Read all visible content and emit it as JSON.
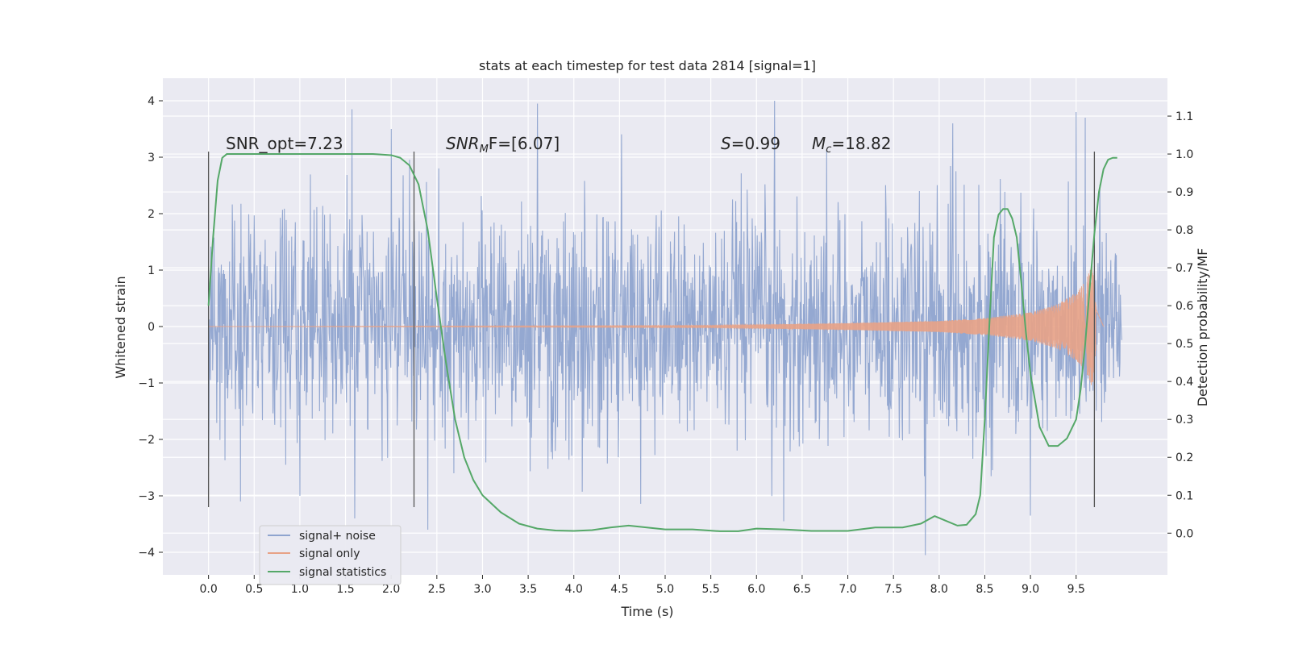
{
  "chart_data": {
    "type": "line",
    "title": "stats at each timestep for test data 2814 [signal=1]",
    "xlabel": "Time (s)",
    "ylabel": "Whitened strain",
    "y2label": "Detection probability/MF",
    "xlim": [
      -0.5,
      10.5
    ],
    "ylim": [
      -4.4,
      4.4
    ],
    "y2lim": [
      -0.11,
      1.2
    ],
    "x_ticks": [
      0.0,
      0.5,
      1.0,
      1.5,
      2.0,
      2.5,
      3.0,
      3.5,
      4.0,
      4.5,
      5.0,
      5.5,
      6.0,
      6.5,
      7.0,
      7.5,
      8.0,
      8.5,
      9.0,
      9.5
    ],
    "x_tick_labels": [
      "0.0",
      "0.5",
      "1.0",
      "1.5",
      "2.0",
      "2.5",
      "3.0",
      "3.5",
      "4.0",
      "4.5",
      "5.0",
      "5.5",
      "6.0",
      "6.5",
      "7.0",
      "7.5",
      "8.0",
      "8.5",
      "9.0",
      "9.5"
    ],
    "y_ticks": [
      -4,
      -3,
      -2,
      -1,
      0,
      1,
      2,
      3,
      4
    ],
    "y_tick_labels": [
      "−4",
      "−3",
      "−2",
      "−1",
      "0",
      "1",
      "2",
      "3",
      "4"
    ],
    "y2_ticks": [
      0.0,
      0.1,
      0.2,
      0.3,
      0.4,
      0.5,
      0.6,
      0.7,
      0.8,
      0.9,
      1.0,
      1.1
    ],
    "y2_tick_labels": [
      "0.0",
      "0.1",
      "0.2",
      "0.3",
      "0.4",
      "0.5",
      "0.6",
      "0.7",
      "0.8",
      "0.9",
      "1.0",
      "1.1"
    ],
    "grid": true,
    "legend_position": "lower-left",
    "annotations": {
      "snr_opt": "SNR_opt=7.23",
      "snr_mf_sym": "SNR",
      "snr_mf_sub": "M",
      "snr_mf_rest": "F=[6.07]",
      "s_sym": "S",
      "s_rest": "=0.99",
      "mc_sym": "M",
      "mc_sub": "c",
      "mc_rest": "=18.82"
    },
    "vertical_markers": {
      "x": [
        0.0,
        2.25,
        9.7
      ],
      "y_range": [
        -3.2,
        3.1
      ]
    },
    "series": [
      {
        "name": "signal+ noise",
        "axis": "left",
        "color": "#8fa4cf",
        "x_range": [
          0.0,
          10.0
        ],
        "n_samples": 2000,
        "typical_amplitude": 1.0,
        "peaks": [
          [
            1.57,
            3.85
          ],
          [
            2.0,
            3.5
          ],
          [
            3.6,
            3.95
          ],
          [
            6.2,
            4.0
          ],
          [
            8.15,
            3.6
          ],
          [
            9.5,
            3.8
          ],
          [
            9.6,
            3.7
          ],
          [
            1.6,
            -3.4
          ],
          [
            2.4,
            -3.6
          ],
          [
            7.85,
            -4.05
          ],
          [
            9.0,
            -3.35
          ],
          [
            6.3,
            -3.45
          ],
          [
            1.0,
            -3.0
          ],
          [
            0.35,
            -3.1
          ]
        ]
      },
      {
        "name": "signal only",
        "axis": "left",
        "color": "#e8a286",
        "x": [
          0.0,
          5.5,
          7.0,
          8.0,
          8.5,
          9.0,
          9.3,
          9.5,
          9.6,
          9.68,
          9.72,
          9.8
        ],
        "envelope": [
          0.0,
          0.02,
          0.06,
          0.1,
          0.15,
          0.25,
          0.4,
          0.6,
          0.8,
          1.1,
          0.3,
          0.0
        ]
      },
      {
        "name": "signal statistics",
        "axis": "right",
        "color": "#55a868",
        "x": [
          0.0,
          0.05,
          0.1,
          0.15,
          0.2,
          0.3,
          0.5,
          1.0,
          1.5,
          1.8,
          2.0,
          2.1,
          2.2,
          2.3,
          2.4,
          2.5,
          2.6,
          2.7,
          2.8,
          2.9,
          3.0,
          3.2,
          3.4,
          3.6,
          3.8,
          4.0,
          4.2,
          4.4,
          4.6,
          4.8,
          5.0,
          5.3,
          5.6,
          5.8,
          6.0,
          6.3,
          6.6,
          7.0,
          7.3,
          7.6,
          7.8,
          7.95,
          8.1,
          8.2,
          8.3,
          8.4,
          8.45,
          8.5,
          8.55,
          8.6,
          8.65,
          8.7,
          8.75,
          8.8,
          8.85,
          8.9,
          8.95,
          9.0,
          9.1,
          9.2,
          9.3,
          9.4,
          9.5,
          9.55,
          9.6,
          9.65,
          9.7,
          9.75,
          9.8,
          9.85,
          9.9,
          9.95
        ],
        "values": [
          0.6,
          0.78,
          0.93,
          0.99,
          1.0,
          1.0,
          1.0,
          1.0,
          1.0,
          1.0,
          0.997,
          0.99,
          0.97,
          0.92,
          0.8,
          0.62,
          0.45,
          0.3,
          0.2,
          0.14,
          0.1,
          0.055,
          0.025,
          0.012,
          0.007,
          0.006,
          0.008,
          0.015,
          0.02,
          0.015,
          0.01,
          0.01,
          0.005,
          0.005,
          0.012,
          0.01,
          0.006,
          0.006,
          0.015,
          0.015,
          0.025,
          0.045,
          0.03,
          0.02,
          0.022,
          0.05,
          0.1,
          0.3,
          0.55,
          0.78,
          0.84,
          0.855,
          0.855,
          0.83,
          0.78,
          0.66,
          0.53,
          0.42,
          0.28,
          0.23,
          0.23,
          0.25,
          0.3,
          0.38,
          0.5,
          0.65,
          0.79,
          0.9,
          0.96,
          0.985,
          0.99,
          0.99
        ]
      }
    ]
  }
}
